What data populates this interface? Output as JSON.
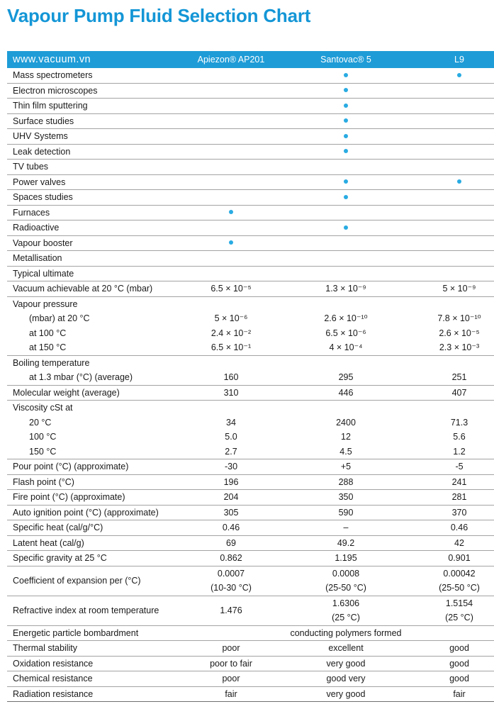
{
  "title": "Vapour Pump Fluid Selection Chart",
  "colors": {
    "title_blue": "#1496d6",
    "header_bar_blue": "#1e9cd7",
    "dot_cyan": "#29abe2",
    "separator_gray": "#a3a3a3",
    "text": "#1a1a1a"
  },
  "table": {
    "columns": [
      "www.vacuum.vn",
      "Apiezon® AP201",
      "Santovac® 5",
      "L9"
    ],
    "dot_symbol": "•",
    "rows": [
      {
        "label": "Mass spectrometers",
        "indent": false,
        "sep": false,
        "values": [
          "",
          "•",
          "•"
        ]
      },
      {
        "label": "Electron microscopes",
        "indent": false,
        "sep": true,
        "values": [
          "",
          "•",
          ""
        ]
      },
      {
        "label": "Thin film sputtering",
        "indent": false,
        "sep": true,
        "values": [
          "",
          "•",
          ""
        ]
      },
      {
        "label": "Surface studies",
        "indent": false,
        "sep": true,
        "values": [
          "",
          "•",
          ""
        ]
      },
      {
        "label": "UHV Systems",
        "indent": false,
        "sep": true,
        "values": [
          "",
          "•",
          ""
        ]
      },
      {
        "label": "Leak detection",
        "indent": false,
        "sep": true,
        "values": [
          "",
          "•",
          ""
        ]
      },
      {
        "label": "TV tubes",
        "indent": false,
        "sep": true,
        "values": [
          "",
          "",
          ""
        ]
      },
      {
        "label": "Power valves",
        "indent": false,
        "sep": true,
        "values": [
          "",
          "•",
          "•"
        ]
      },
      {
        "label": "Spaces studies",
        "indent": false,
        "sep": true,
        "values": [
          "",
          "•",
          ""
        ]
      },
      {
        "label": "Furnaces",
        "indent": false,
        "sep": true,
        "values": [
          "•",
          "",
          ""
        ]
      },
      {
        "label": "Radioactive",
        "indent": false,
        "sep": true,
        "values": [
          "",
          "•",
          ""
        ]
      },
      {
        "label": "Vapour booster",
        "indent": false,
        "sep": true,
        "values": [
          "•",
          "",
          ""
        ]
      },
      {
        "label": "Metallisation",
        "indent": false,
        "sep": true,
        "values": [
          "",
          "",
          ""
        ]
      },
      {
        "label": "Typical ultimate",
        "indent": false,
        "sep": true,
        "values": [
          "",
          "",
          ""
        ]
      },
      {
        "label": "Vacuum achievable at 20 °C (mbar)",
        "indent": false,
        "sep": true,
        "values": [
          "6.5 × 10⁻⁵",
          "1.3 × 10⁻⁹",
          "5 × 10⁻⁹"
        ]
      },
      {
        "label": "Vapour pressure",
        "indent": false,
        "sep": true,
        "values": [
          "",
          "",
          ""
        ]
      },
      {
        "label": "(mbar) at 20 °C",
        "indent": true,
        "sep": false,
        "values": [
          "5 × 10⁻⁶",
          "2.6 × 10⁻¹⁰",
          "7.8 × 10⁻¹⁰"
        ]
      },
      {
        "label": "at 100 °C",
        "indent": true,
        "sep": false,
        "values": [
          "2.4 × 10⁻²",
          "6.5 × 10⁻⁶",
          "2.6 × 10⁻⁵"
        ]
      },
      {
        "label": "at 150 °C",
        "indent": true,
        "sep": false,
        "values": [
          "6.5 × 10⁻¹",
          "4 × 10⁻⁴",
          "2.3 × 10⁻³"
        ]
      },
      {
        "label": "Boiling temperature",
        "indent": false,
        "sep": true,
        "values": [
          "",
          "",
          ""
        ]
      },
      {
        "label": "at 1.3 mbar (°C) (average)",
        "indent": true,
        "sep": false,
        "values": [
          "160",
          "295",
          "251"
        ]
      },
      {
        "label": "Molecular weight (average)",
        "indent": false,
        "sep": true,
        "values": [
          "310",
          "446",
          "407"
        ]
      },
      {
        "label": "Viscosity cSt at",
        "indent": false,
        "sep": true,
        "values": [
          "",
          "",
          ""
        ]
      },
      {
        "label": "20 °C",
        "indent": true,
        "sep": false,
        "values": [
          "34",
          "2400",
          "71.3"
        ]
      },
      {
        "label": "100 °C",
        "indent": true,
        "sep": false,
        "values": [
          "5.0",
          "12",
          "5.6"
        ]
      },
      {
        "label": "150 °C",
        "indent": true,
        "sep": false,
        "values": [
          "2.7",
          "4.5",
          "1.2"
        ]
      },
      {
        "label": "Pour point (°C) (approximate)",
        "indent": false,
        "sep": true,
        "values": [
          "-30",
          "+5",
          "-5"
        ]
      },
      {
        "label": "Flash point (°C)",
        "indent": false,
        "sep": true,
        "values": [
          "196",
          "288",
          "241"
        ]
      },
      {
        "label": "Fire point (°C) (approximate)",
        "indent": false,
        "sep": true,
        "values": [
          "204",
          "350",
          "281"
        ]
      },
      {
        "label": "Auto ignition point (°C) (approximate)",
        "indent": false,
        "sep": true,
        "values": [
          "305",
          "590",
          "370"
        ]
      },
      {
        "label": "Specific heat (cal/g/°C)",
        "indent": false,
        "sep": true,
        "values": [
          "0.46",
          "–",
          "0.46"
        ]
      },
      {
        "label": "Latent heat (cal/g)",
        "indent": false,
        "sep": true,
        "values": [
          "69",
          "49.2",
          "42"
        ]
      },
      {
        "label": "Specific gravity at 25 °C",
        "indent": false,
        "sep": true,
        "values": [
          "0.862",
          "1.195",
          "0.901"
        ]
      },
      {
        "label": "Coefficient of expansion per (°C)",
        "indent": false,
        "sep": true,
        "values": [
          "0.0007\n(10-30 °C)",
          "0.0008\n(25-50 °C)",
          "0.00042\n(25-50 °C)"
        ]
      },
      {
        "label": "Refractive index at room temperature",
        "indent": false,
        "sep": true,
        "values": [
          "1.476",
          "1.6306\n(25 °C)",
          "1.5154\n(25 °C)"
        ]
      },
      {
        "label": "Energetic particle bombardment",
        "indent": false,
        "sep": true,
        "values": [
          "",
          "conducting polymers formed",
          ""
        ]
      },
      {
        "label": "Thermal stability",
        "indent": false,
        "sep": true,
        "values": [
          "poor",
          "excellent",
          "good"
        ]
      },
      {
        "label": "Oxidation resistance",
        "indent": false,
        "sep": true,
        "values": [
          "poor to fair",
          "very good",
          "good"
        ]
      },
      {
        "label": "Chemical resistance",
        "indent": false,
        "sep": true,
        "values": [
          "poor",
          "good very",
          "good"
        ]
      },
      {
        "label": "Radiation resistance",
        "indent": false,
        "sep": true,
        "values": [
          "fair",
          "very good",
          "fair"
        ]
      }
    ]
  }
}
